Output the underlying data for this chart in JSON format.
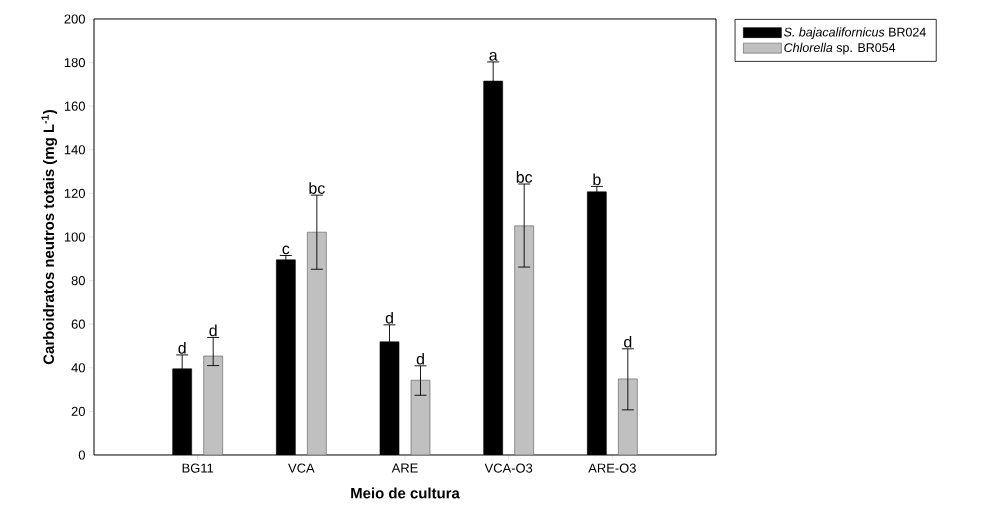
{
  "chart_data": {
    "type": "bar",
    "xlabel": "Meio de cultura",
    "ylabel": "Carboidratos neutros totais (mg L$^{-1}$)",
    "categories": [
      "BG11",
      "VCA",
      "ARE",
      "VCA-O3",
      "ARE-O3"
    ],
    "series": [
      {
        "name": "*S. bajacalifornicus* BR024",
        "color": "#000000",
        "values": [
          39.5,
          89.5,
          51.9,
          171.5,
          120.7
        ],
        "errors": [
          6.4,
          2.0,
          7.8,
          8.8,
          2.5
        ]
      },
      {
        "name": "*Chlorella* sp. BR054",
        "color": "#c0c0c0",
        "values": [
          45.4,
          102.2,
          34.3,
          105.1,
          34.9
        ],
        "errors": [
          [
            41.0,
            53.9
          ],
          [
            85.2,
            119.2
          ],
          [
            27.4,
            40.9
          ],
          [
            86.2,
            124.3
          ],
          [
            20.7,
            48.7
          ]
        ]
      }
    ],
    "ylim": [
      0,
      200
    ],
    "yticks": [
      0,
      20,
      40,
      60,
      80,
      100,
      120,
      140,
      160,
      180,
      200
    ],
    "legend": "top right",
    "annotations": [
      "d",
      "d",
      "c",
      "bc",
      "d",
      "d",
      "a",
      "bc",
      "b",
      "d"
    ]
  }
}
